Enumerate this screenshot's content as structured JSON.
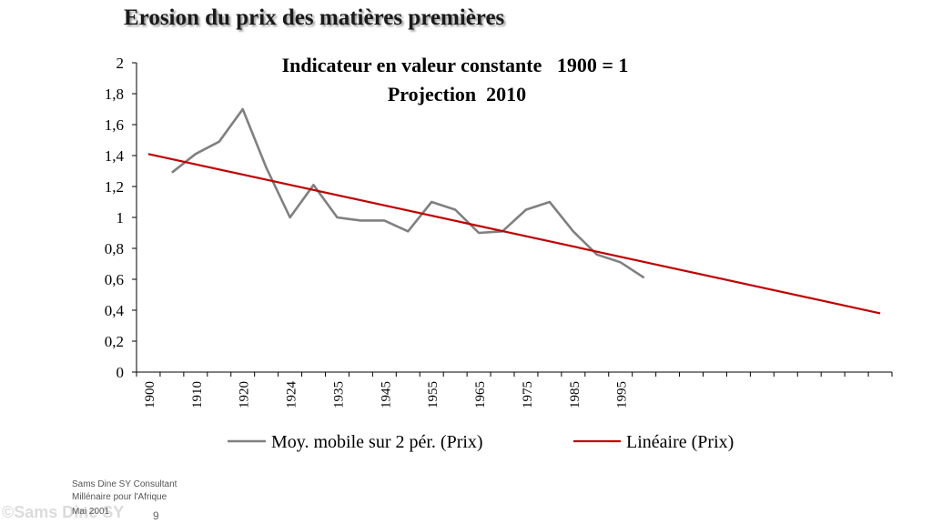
{
  "slide": {
    "title": "Erosion du prix des matières premières",
    "footer": [
      "Sams Dine SY Consultant",
      "Millénaire pour l'Afrique",
      "Mai 2001"
    ],
    "watermark": "©Sams Dine SY",
    "page_number": "9"
  },
  "chart_data": {
    "type": "line",
    "title": "Indicateur en valeur constante   1900 = 1",
    "subtitle": "Projection  2010",
    "xlabel": "",
    "ylabel": "",
    "x_tick_labels": [
      "1900",
      "1910",
      "1920",
      "1924",
      "1935",
      "1945",
      "1955",
      "1965",
      "1975",
      "1985",
      "1995"
    ],
    "ylim": [
      0,
      2
    ],
    "y_ticks": [
      "0",
      "0,2",
      "0,4",
      "0,6",
      "0,8",
      "1",
      "1,2",
      "1,4",
      "1,6",
      "1,8",
      "2"
    ],
    "category_count": 32,
    "grid": false,
    "legend_position": "bottom",
    "series": [
      {
        "name": "Moy. mobile sur 2 pér. (Prix)",
        "color": "#808080",
        "values": [
          null,
          1.29,
          1.41,
          1.49,
          1.7,
          1.32,
          1.0,
          1.21,
          1.0,
          0.98,
          0.98,
          0.91,
          1.1,
          1.05,
          0.9,
          0.91,
          1.05,
          1.1,
          0.91,
          0.76,
          0.71,
          0.61
        ]
      },
      {
        "name": "Linéaire (Prix)",
        "color": "#c00000",
        "values": [
          1.41,
          0.38
        ],
        "span": [
          0,
          31
        ]
      }
    ]
  }
}
